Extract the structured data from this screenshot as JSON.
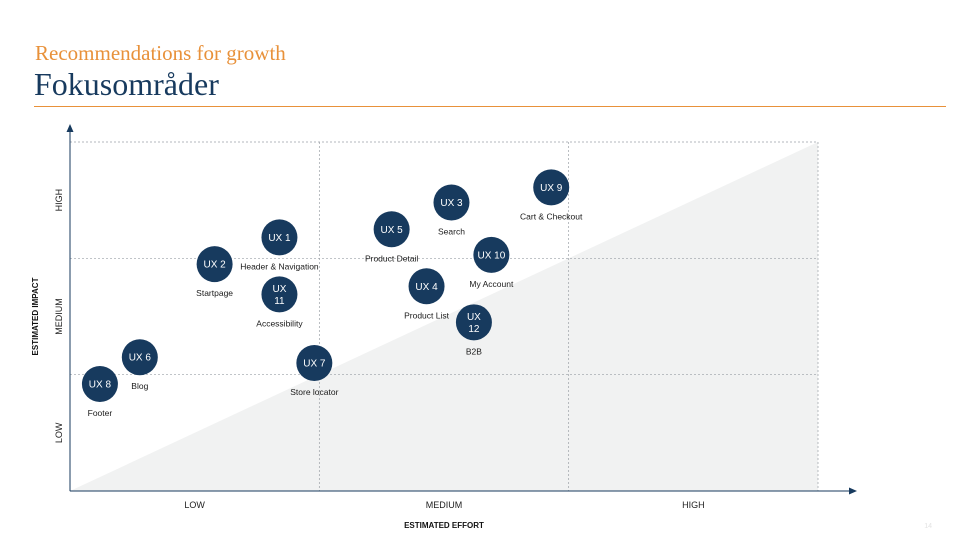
{
  "slide": {
    "subtitle": "Recommendations for growth",
    "title": "Fokusområder",
    "page_number": "14"
  },
  "colors": {
    "accent": "#e8913a",
    "bubble": "#173a5e",
    "title": "#173a5e",
    "triangle": "#f1f2f2",
    "grid": "#9aa0a6"
  },
  "chart_data": {
    "type": "scatter",
    "title": "",
    "xlabel": "ESTIMATED EFFORT",
    "ylabel": "ESTIMATED IMPACT",
    "xlim": [
      0,
      3
    ],
    "ylim": [
      0,
      3
    ],
    "x_ticks": [
      "LOW",
      "MEDIUM",
      "HIGH"
    ],
    "y_ticks": [
      "LOW",
      "MEDIUM",
      "HIGH"
    ],
    "grid": true,
    "points": [
      {
        "id": "ux1",
        "label": [
          "UX 1"
        ],
        "caption": "Header & Navigation",
        "x": 0.84,
        "y": 2.18
      },
      {
        "id": "ux2",
        "label": [
          "UX 2"
        ],
        "caption": "Startpage",
        "x": 0.58,
        "y": 1.95
      },
      {
        "id": "ux3",
        "label": [
          "UX 3"
        ],
        "caption": "Search",
        "x": 1.53,
        "y": 2.48
      },
      {
        "id": "ux4",
        "label": [
          "UX 4"
        ],
        "caption": "Product List",
        "x": 1.43,
        "y": 1.76
      },
      {
        "id": "ux5",
        "label": [
          "UX 5"
        ],
        "caption": "Product Detail",
        "x": 1.29,
        "y": 2.25
      },
      {
        "id": "ux6",
        "label": [
          "UX 6"
        ],
        "caption": "Blog",
        "x": 0.28,
        "y": 1.15
      },
      {
        "id": "ux7",
        "label": [
          "UX 7"
        ],
        "caption": "Store locator",
        "x": 0.98,
        "y": 1.1
      },
      {
        "id": "ux8",
        "label": [
          "UX 8"
        ],
        "caption": "Footer",
        "x": 0.12,
        "y": 0.92
      },
      {
        "id": "ux9",
        "label": [
          "UX 9"
        ],
        "caption": "Cart & Checkout",
        "x": 1.93,
        "y": 2.61
      },
      {
        "id": "ux10",
        "label": [
          "UX 10"
        ],
        "caption": "My Account",
        "x": 1.69,
        "y": 2.03
      },
      {
        "id": "ux11",
        "label": [
          "UX",
          "11"
        ],
        "caption": "Accessibility",
        "x": 0.84,
        "y": 1.69
      },
      {
        "id": "ux12",
        "label": [
          "UX",
          "12"
        ],
        "caption": "B2B",
        "x": 1.62,
        "y": 1.45
      }
    ]
  }
}
